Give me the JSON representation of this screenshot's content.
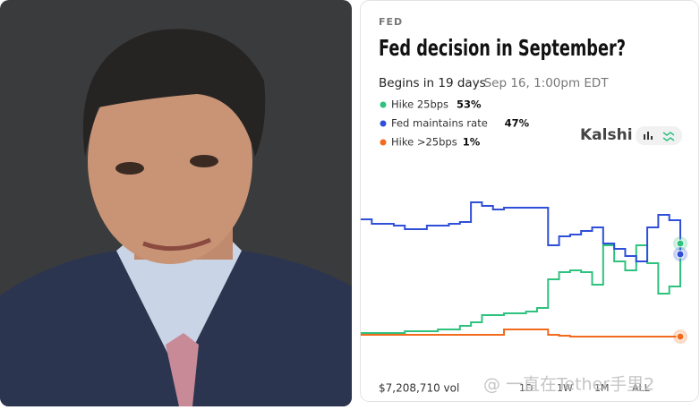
{
  "source_label": "FED",
  "chart_data": {
    "type": "line",
    "title": "Fed decision in September?",
    "subtitle": "Begins in 19 days",
    "date_text": "· Sep 16, 1:00pm EDT",
    "brand": "Kalshi",
    "volume": "$7,208,710 vol",
    "ranges": [
      "1D",
      "1W",
      "1M",
      "ALL"
    ],
    "ylim": [
      -5,
      80
    ],
    "series": [
      {
        "name": "Hike 25bps",
        "color": "#2ec27e",
        "value_label": "53%",
        "values": [
          3,
          3,
          3,
          3,
          4,
          4,
          4,
          5,
          5,
          7,
          9,
          13,
          13,
          14,
          14,
          15,
          17,
          33,
          37,
          38,
          37,
          30,
          52,
          43,
          38,
          52,
          42,
          25,
          29,
          53
        ]
      },
      {
        "name": "Fed maintains rate",
        "color": "#2f4fd8",
        "value_label": "47%",
        "values": [
          66.5,
          64,
          64,
          63,
          61,
          61,
          63,
          63,
          64,
          65,
          76,
          74,
          72,
          73,
          73,
          73,
          73,
          52,
          57,
          58,
          60,
          62,
          53,
          50,
          46,
          43,
          62,
          69,
          66,
          47
        ]
      },
      {
        "name": "Hike >25bps",
        "color": "#f26b1d",
        "value_label": "1%",
        "values": [
          2,
          2,
          2,
          2,
          2,
          2,
          2,
          2,
          2,
          2,
          2,
          2,
          2,
          5,
          5,
          5,
          5,
          2,
          1.5,
          1,
          1,
          1,
          1,
          1,
          1,
          1,
          1,
          1,
          1,
          1
        ]
      }
    ]
  },
  "watermark": "@ 一直在Tether手里2"
}
